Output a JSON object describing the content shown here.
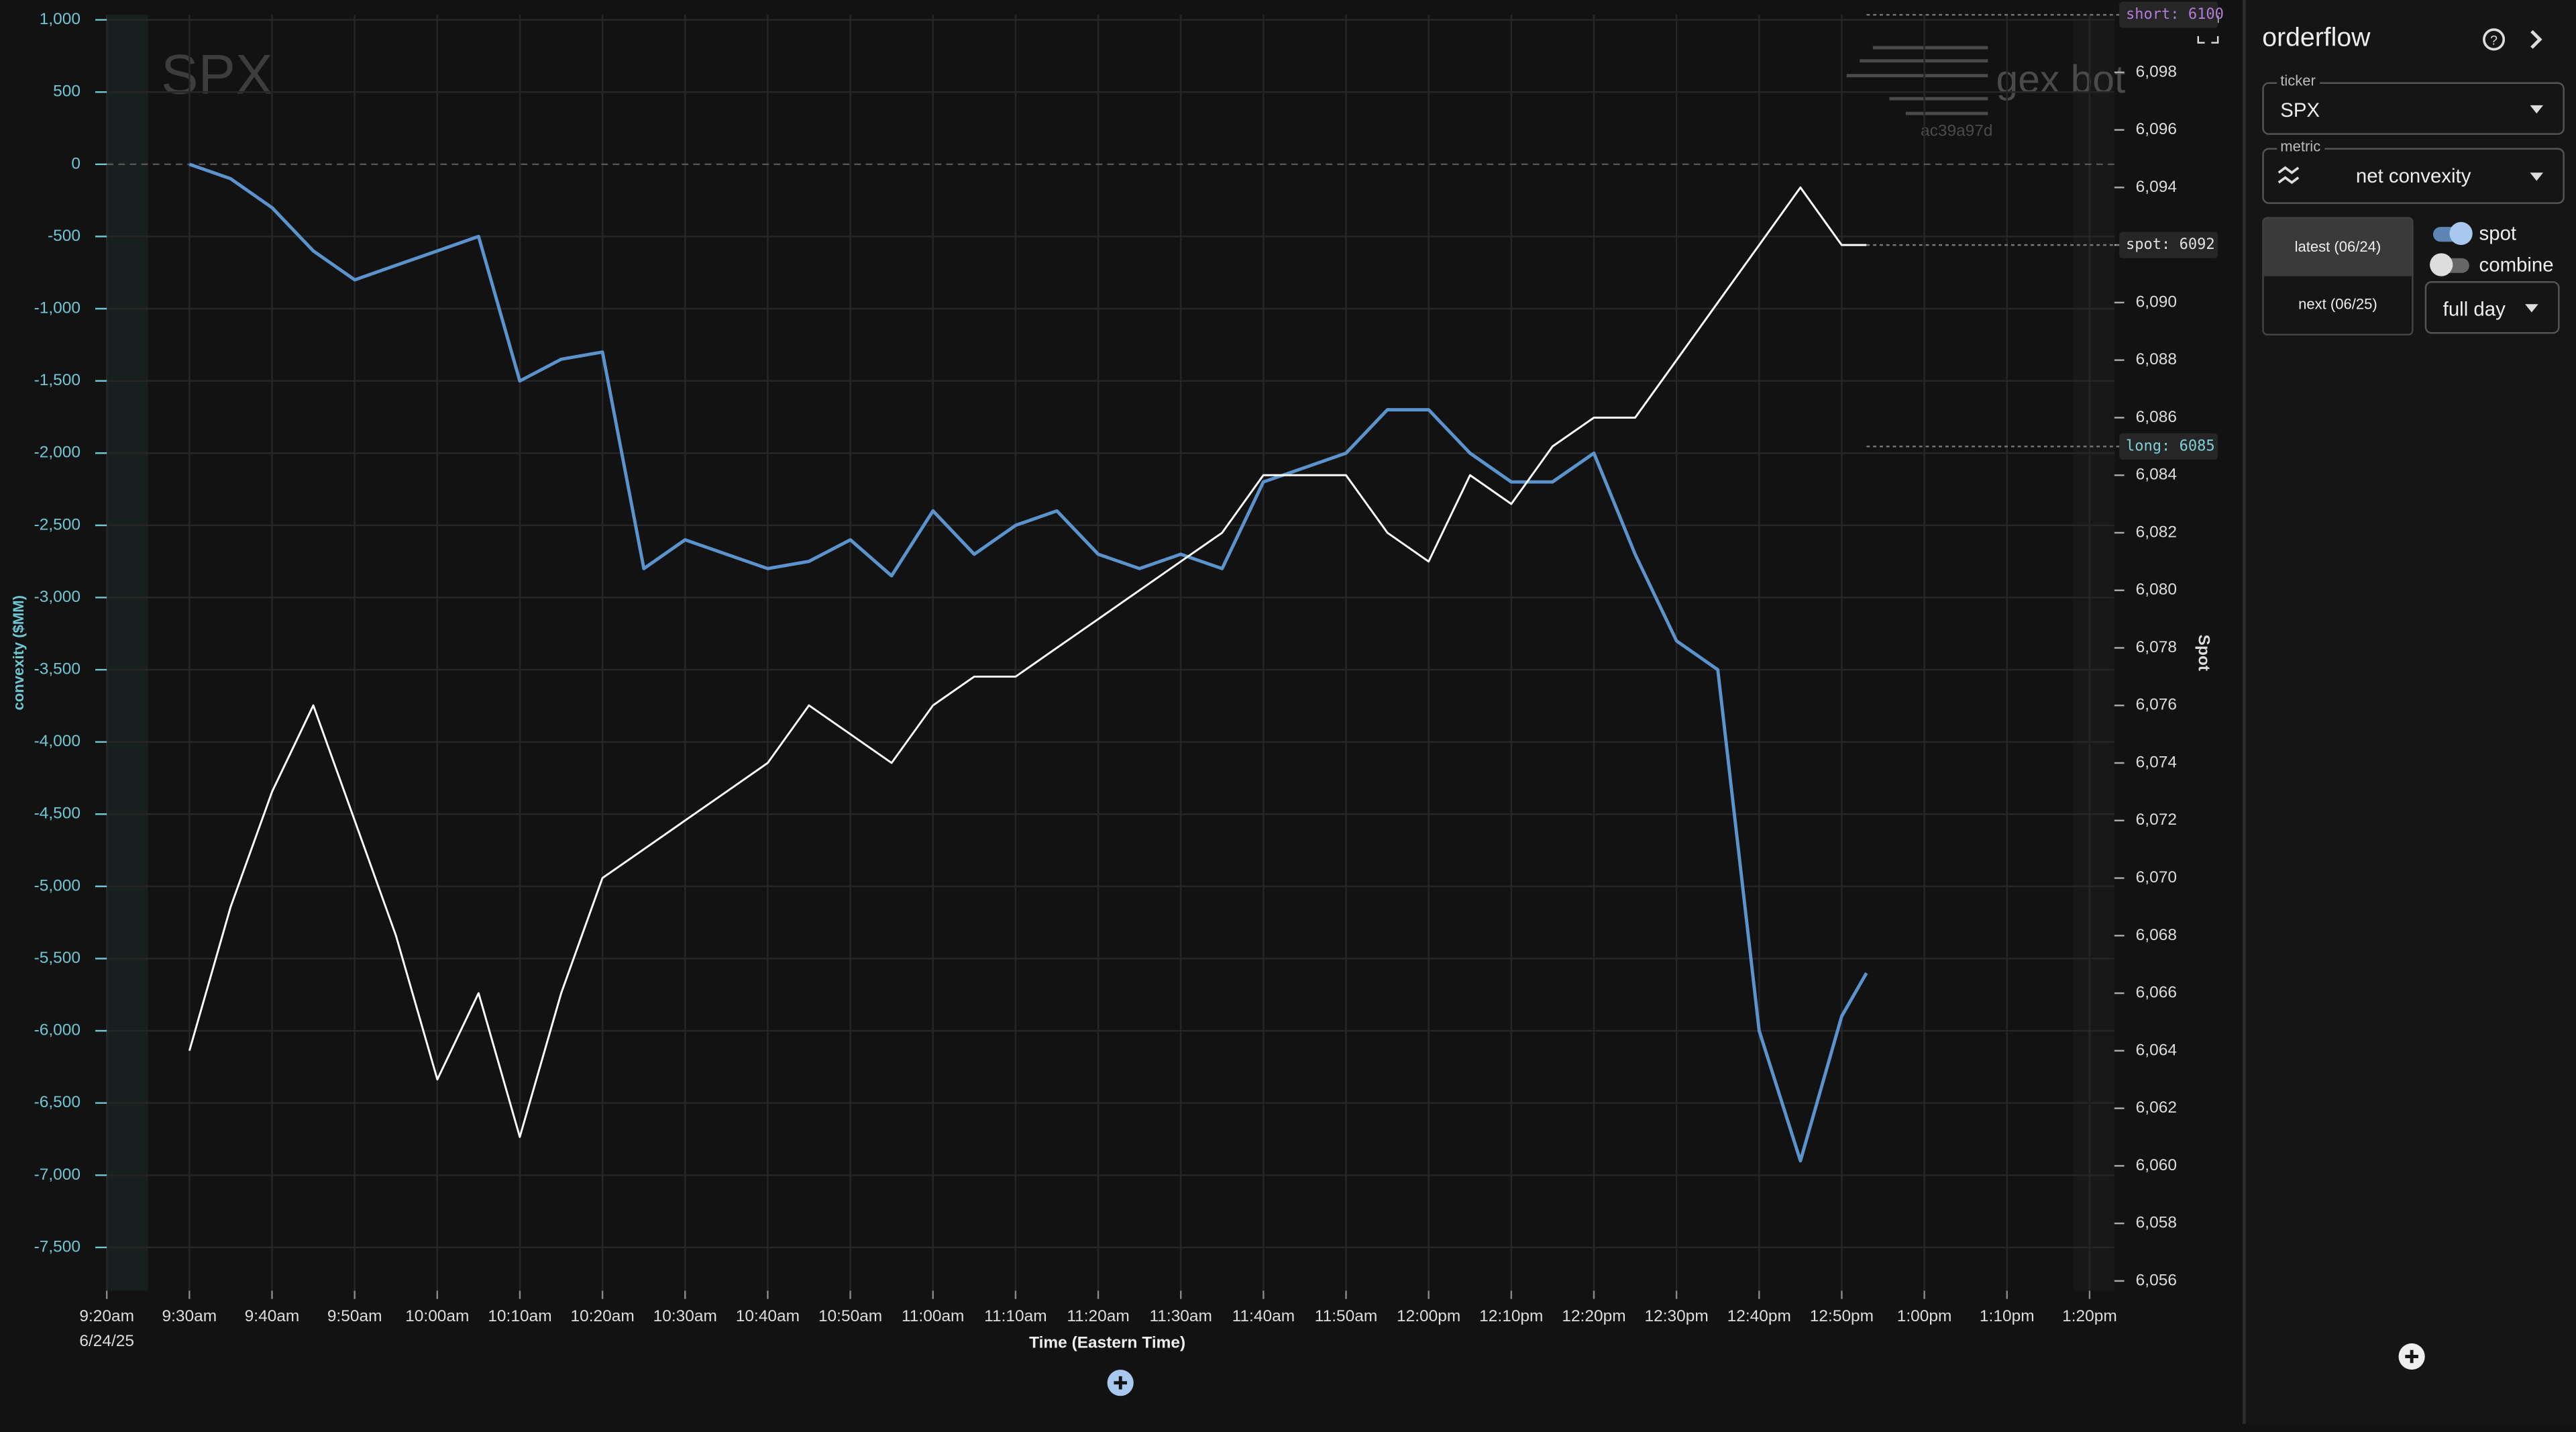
{
  "chart_data": {
    "type": "line",
    "watermark": "SPX",
    "brand": "gex bot",
    "build_id": "ac39a97d",
    "xlabel": "Time (Eastern Time)",
    "ylabel": "convexity ($MM)",
    "y2label": "Spot",
    "x_date_label": "6/24/25",
    "xlim": [
      560,
      803
    ],
    "xticks": [
      {
        "value": 560,
        "label": "9:20am"
      },
      {
        "value": 570,
        "label": "9:30am"
      },
      {
        "value": 580,
        "label": "9:40am"
      },
      {
        "value": 590,
        "label": "9:50am"
      },
      {
        "value": 600,
        "label": "10:00am"
      },
      {
        "value": 610,
        "label": "10:10am"
      },
      {
        "value": 620,
        "label": "10:20am"
      },
      {
        "value": 630,
        "label": "10:30am"
      },
      {
        "value": 640,
        "label": "10:40am"
      },
      {
        "value": 650,
        "label": "10:50am"
      },
      {
        "value": 660,
        "label": "11:00am"
      },
      {
        "value": 670,
        "label": "11:10am"
      },
      {
        "value": 680,
        "label": "11:20am"
      },
      {
        "value": 690,
        "label": "11:30am"
      },
      {
        "value": 700,
        "label": "11:40am"
      },
      {
        "value": 710,
        "label": "11:50am"
      },
      {
        "value": 720,
        "label": "12:00pm"
      },
      {
        "value": 730,
        "label": "12:10pm"
      },
      {
        "value": 740,
        "label": "12:20pm"
      },
      {
        "value": 750,
        "label": "12:30pm"
      },
      {
        "value": 760,
        "label": "12:40pm"
      },
      {
        "value": 770,
        "label": "12:50pm"
      },
      {
        "value": 780,
        "label": "1:00pm"
      },
      {
        "value": 790,
        "label": "1:10pm"
      },
      {
        "value": 800,
        "label": "1:20pm"
      }
    ],
    "ylim": [
      -7800,
      1035
    ],
    "yticks": [
      {
        "value": 1000,
        "label": "1,000"
      },
      500,
      0,
      -500,
      {
        "value": -1000,
        "label": "-1,000"
      },
      {
        "value": -1500,
        "label": "-1,500"
      },
      {
        "value": -2000,
        "label": "-2,000"
      },
      {
        "value": -2500,
        "label": "-2,500"
      },
      {
        "value": -3000,
        "label": "-3,000"
      },
      {
        "value": -3500,
        "label": "-3,500"
      },
      {
        "value": -4000,
        "label": "-4,000"
      },
      {
        "value": -4500,
        "label": "-4,500"
      },
      {
        "value": -5000,
        "label": "-5,000"
      },
      {
        "value": -5500,
        "label": "-5,500"
      },
      {
        "value": -6000,
        "label": "-6,000"
      },
      {
        "value": -6500,
        "label": "-6,500"
      },
      {
        "value": -7000,
        "label": "-7,000"
      },
      {
        "value": -7500,
        "label": "-7,500"
      }
    ],
    "y2lim": [
      6055.66,
      6100
    ],
    "y2ticks": [
      {
        "value": 6056,
        "label": "6,056"
      },
      {
        "value": 6058,
        "label": "6,058"
      },
      {
        "value": 6060,
        "label": "6,060"
      },
      {
        "value": 6062,
        "label": "6,062"
      },
      {
        "value": 6064,
        "label": "6,064"
      },
      {
        "value": 6066,
        "label": "6,066"
      },
      {
        "value": 6068,
        "label": "6,068"
      },
      {
        "value": 6070,
        "label": "6,070"
      },
      {
        "value": 6072,
        "label": "6,072"
      },
      {
        "value": 6074,
        "label": "6,074"
      },
      {
        "value": 6076,
        "label": "6,076"
      },
      {
        "value": 6078,
        "label": "6,078"
      },
      {
        "value": 6080,
        "label": "6,080"
      },
      {
        "value": 6082,
        "label": "6,082"
      },
      {
        "value": 6084,
        "label": "6,084"
      },
      {
        "value": 6086,
        "label": "6,086"
      },
      {
        "value": 6088,
        "label": "6,088"
      },
      {
        "value": 6090,
        "label": "6,090"
      },
      {
        "value": 6092,
        "label": "6,092"
      },
      {
        "value": 6094,
        "label": "6,094"
      },
      {
        "value": 6096,
        "label": "6,096"
      },
      {
        "value": 6098,
        "label": "6,098"
      }
    ],
    "grid": true,
    "x": [
      570,
      575,
      580,
      585,
      590,
      595,
      600,
      605,
      610,
      615,
      620,
      625,
      630,
      635,
      640,
      645,
      650,
      655,
      660,
      665,
      670,
      675,
      680,
      685,
      690,
      695,
      700,
      705,
      710,
      715,
      720,
      725,
      730,
      735,
      740,
      745,
      750,
      755,
      760,
      765,
      770,
      773
    ],
    "series": [
      {
        "name": "net convexity",
        "color": "#5b93cc",
        "axis": "y",
        "values": [
          0,
          -100,
          -300,
          -600,
          -800,
          -700,
          -600,
          -500,
          -1500,
          -1350,
          -1300,
          -2800,
          -2600,
          -2700,
          -2800,
          -2750,
          -2600,
          -2850,
          -2400,
          -2700,
          -2500,
          -2400,
          -2700,
          -2800,
          -2700,
          -2800,
          -2200,
          -2100,
          -2000,
          -1700,
          -1700,
          -2000,
          -2200,
          -2200,
          -2000,
          -2700,
          -3300,
          -3500,
          -6000,
          -6900,
          -5900,
          -5600
        ]
      },
      {
        "name": "spot",
        "color": "#ffffff",
        "axis": "y2",
        "values": [
          6064,
          6069,
          6073,
          6076,
          6072,
          6068,
          6063,
          6066,
          6061,
          6066,
          6070,
          6071,
          6072,
          6073,
          6074,
          6076,
          6075,
          6074,
          6076,
          6077,
          6077,
          6078,
          6079,
          6080,
          6081,
          6082,
          6084,
          6084,
          6084,
          6082,
          6081,
          6084,
          6083,
          6085,
          6086,
          6086,
          6088,
          6090,
          6092,
          6094,
          6092,
          6092
        ]
      }
    ],
    "levels": [
      {
        "label": "short: 6100",
        "value": 6100,
        "color": "#b07cd8"
      },
      {
        "label": "spot: 6092",
        "value": 6092,
        "color": "#e0e0e0"
      },
      {
        "label": "long: 6085",
        "value": 6085,
        "color": "#7fd0d8"
      }
    ]
  },
  "panel": {
    "title": "orderflow",
    "ticker_label": "ticker",
    "ticker": "SPX",
    "metric_label": "metric",
    "metric": "net convexity",
    "expiries": [
      "latest (06/24)",
      "next (06/25)"
    ],
    "toggles": [
      "spot",
      "combine"
    ],
    "range": "full day"
  }
}
